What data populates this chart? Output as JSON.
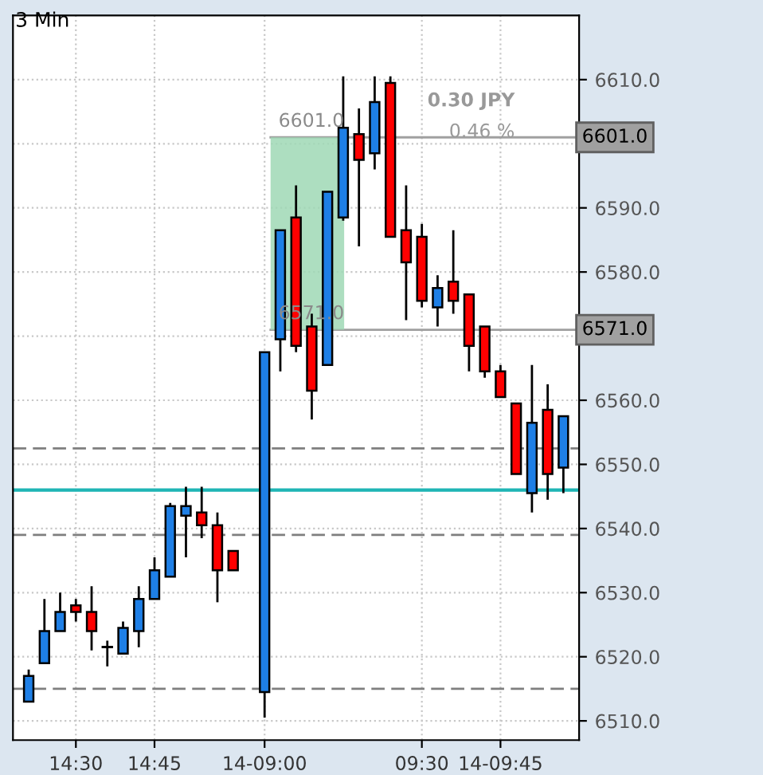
{
  "chart_data": {
    "type": "candlestick",
    "title": "3 Min",
    "categories": [
      null,
      null,
      null,
      "14:30",
      null,
      null,
      null,
      null,
      "14:45",
      null,
      null,
      null,
      null,
      null,
      null,
      "14-09:00",
      null,
      null,
      null,
      null,
      null,
      null,
      null,
      null,
      null,
      "09:30",
      null,
      null,
      null,
      null,
      "14-09:45",
      null,
      null,
      null,
      null
    ],
    "ohlc": [
      [
        6513,
        6518,
        6513,
        6517
      ],
      [
        6519,
        6529,
        6519,
        6524
      ],
      [
        6524,
        6530,
        6524,
        6527
      ],
      [
        6528,
        6529,
        6525.5,
        6527
      ],
      [
        6527,
        6531,
        6521,
        6524
      ],
      [
        6521.5,
        6522.5,
        6518.5,
        6521.5
      ],
      [
        6520.5,
        6525.5,
        6520.5,
        6524.5
      ],
      [
        6524,
        6531,
        6521.5,
        6529
      ],
      [
        6529,
        6535.5,
        6529,
        6533.5
      ],
      [
        6532.5,
        6544,
        6532.5,
        6543.5
      ],
      [
        6542,
        6546.5,
        6535.5,
        6543.5
      ],
      [
        6542.5,
        6546.5,
        6538.5,
        6540.5
      ],
      [
        6540.5,
        6542.5,
        6528.5,
        6533.5
      ],
      [
        6536.5,
        6536.5,
        6533.5,
        6533.5
      ],
      null,
      [
        6514.5,
        6567.5,
        6510.5,
        6567.5
      ],
      [
        6569.5,
        6586.5,
        6564.5,
        6586.5
      ],
      [
        6588.5,
        6593.5,
        6567.5,
        6568.5
      ],
      [
        6571.5,
        6573.5,
        6557,
        6561.5
      ],
      [
        6565.5,
        6592.5,
        6565.5,
        6592.5
      ],
      [
        6588.5,
        6610.5,
        6588,
        6602.5
      ],
      [
        6601.5,
        6605.5,
        6584,
        6597.5
      ],
      [
        6598.5,
        6610.5,
        6596,
        6606.5
      ],
      [
        6609.5,
        6610.5,
        6585.5,
        6585.5
      ],
      [
        6586.5,
        6593.5,
        6572.5,
        6581.5
      ],
      [
        6585.5,
        6587.5,
        6574.5,
        6575.5
      ],
      [
        6574.5,
        6579.5,
        6571.5,
        6577.5
      ],
      [
        6578.5,
        6586.5,
        6573.5,
        6575.5
      ],
      [
        6576.5,
        6576.5,
        6564.5,
        6568.5
      ],
      [
        6571.5,
        6571.5,
        6563.5,
        6564.5
      ],
      [
        6564.5,
        6565.5,
        6560.5,
        6560.5
      ],
      [
        6559.5,
        6559.5,
        6548.5,
        6548.5
      ],
      [
        6545.5,
        6565.5,
        6542.5,
        6556.5
      ],
      [
        6558.5,
        6562.5,
        6544.5,
        6548.5
      ],
      [
        6549.5,
        6557.5,
        6545.5,
        6557.5
      ]
    ],
    "colors": [
      "#1e7fe6",
      "#1e7fe6",
      "#1e7fe6",
      "#ff0000",
      "#ff0000",
      "#1e7fe6",
      "#1e7fe6",
      "#1e7fe6",
      "#1e7fe6",
      "#1e7fe6",
      "#1e7fe6",
      "#ff0000",
      "#ff0000",
      "#ff0000",
      null,
      "#1e7fe6",
      "#1e7fe6",
      "#ff0000",
      "#ff0000",
      "#1e7fe6",
      "#1e7fe6",
      "#ff0000",
      "#1e7fe6",
      "#ff0000",
      "#ff0000",
      "#ff0000",
      "#1e7fe6",
      "#ff0000",
      "#ff0000",
      "#ff0000",
      "#ff0000",
      "#ff0000",
      "#1e7fe6",
      "#ff0000",
      "#1e7fe6"
    ],
    "ylim": [
      6507,
      6620
    ],
    "yticks": [
      {
        "value": 6510,
        "label": "6510.0"
      },
      {
        "value": 6520,
        "label": "6520.0"
      },
      {
        "value": 6530,
        "label": "6530.0"
      },
      {
        "value": 6540,
        "label": "6540.0"
      },
      {
        "value": 6550,
        "label": "6550.0"
      },
      {
        "value": 6560,
        "label": "6560.0"
      },
      {
        "value": 6570,
        "label": null
      },
      {
        "value": 6580,
        "label": "6580.0"
      },
      {
        "value": 6590,
        "label": "6590.0"
      },
      {
        "value": 6600,
        "label": null
      },
      {
        "value": 6610,
        "label": "6610.0"
      }
    ],
    "grid": true,
    "ref_lines": [
      {
        "axis": "y",
        "value": 6546,
        "color": "#1fb5b5",
        "line_style": "solid"
      },
      {
        "axis": "y",
        "value": 6552.5,
        "color": "#7f7f7f",
        "line_style": "dashed"
      },
      {
        "axis": "y",
        "value": 6539,
        "color": "#7f7f7f",
        "line_style": "dashed"
      },
      {
        "axis": "y",
        "value": 6515,
        "color": "#7f7f7f",
        "line_style": "dashed"
      },
      {
        "axis": "y",
        "value": 6601,
        "label": "6601.0",
        "color": "#a0a0a0",
        "line_style": "solid"
      },
      {
        "axis": "y",
        "value": 6571,
        "label": "6571.0",
        "color": "#a0a0a0",
        "line_style": "solid"
      }
    ],
    "bands": [
      {
        "axis": "y",
        "from": 6571,
        "to": 6601,
        "color": "#9fd8b5"
      }
    ],
    "annotations": [
      {
        "text": "0.30 JPY",
        "x": "09:30",
        "y": 6601
      },
      {
        "text": "0.46 %",
        "x": "09:30",
        "y": 6601
      },
      {
        "text": "6601.0",
        "y": 6601
      },
      {
        "text": "6571.0",
        "y": 6571
      }
    ]
  }
}
